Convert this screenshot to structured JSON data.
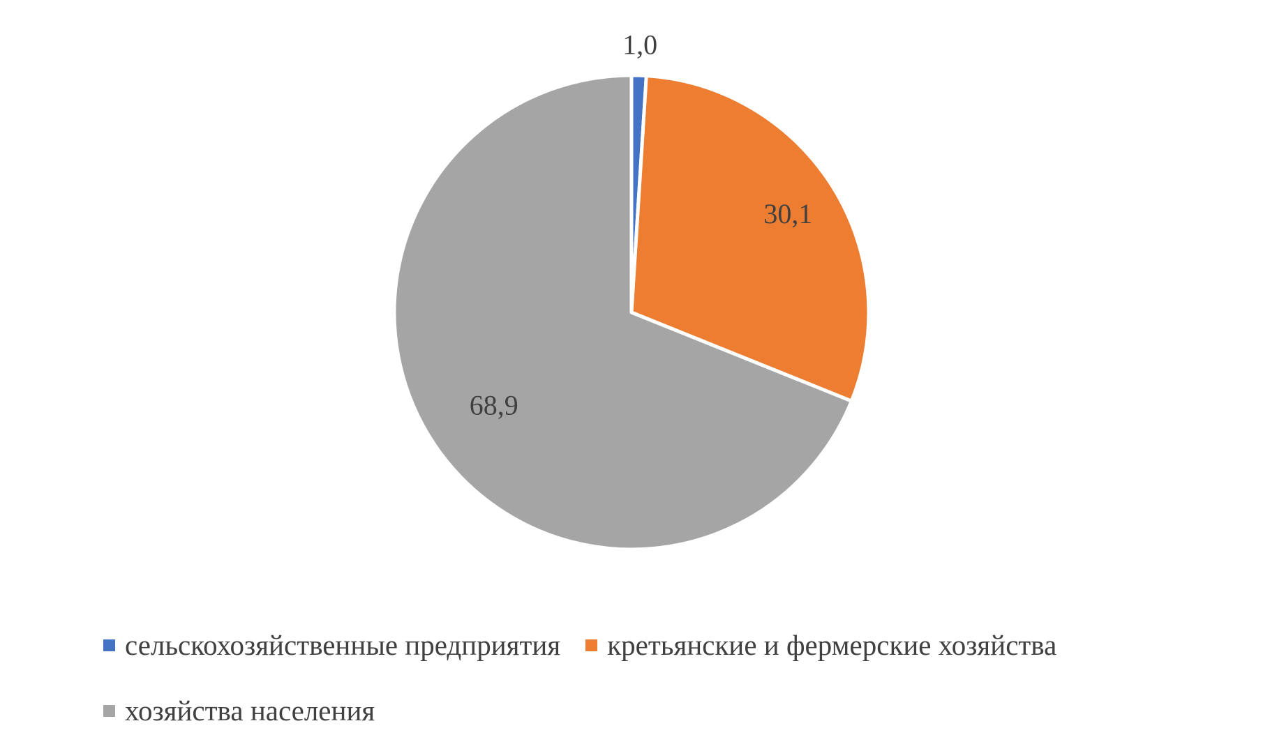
{
  "chart_data": {
    "type": "pie",
    "title": "",
    "categories": [
      "сельскохозяйственные предприятия",
      "кретьянские и фермерские хозяйства",
      "хозяйства населения"
    ],
    "values": [
      1.0,
      30.1,
      68.9
    ],
    "data_labels": [
      "1,0",
      "30,1",
      "68,9"
    ],
    "colors": [
      "#4472C4",
      "#ED7D31",
      "#A5A5A5"
    ],
    "start_angle_deg": 0,
    "direction": "clockwise",
    "legend_position": "bottom"
  }
}
